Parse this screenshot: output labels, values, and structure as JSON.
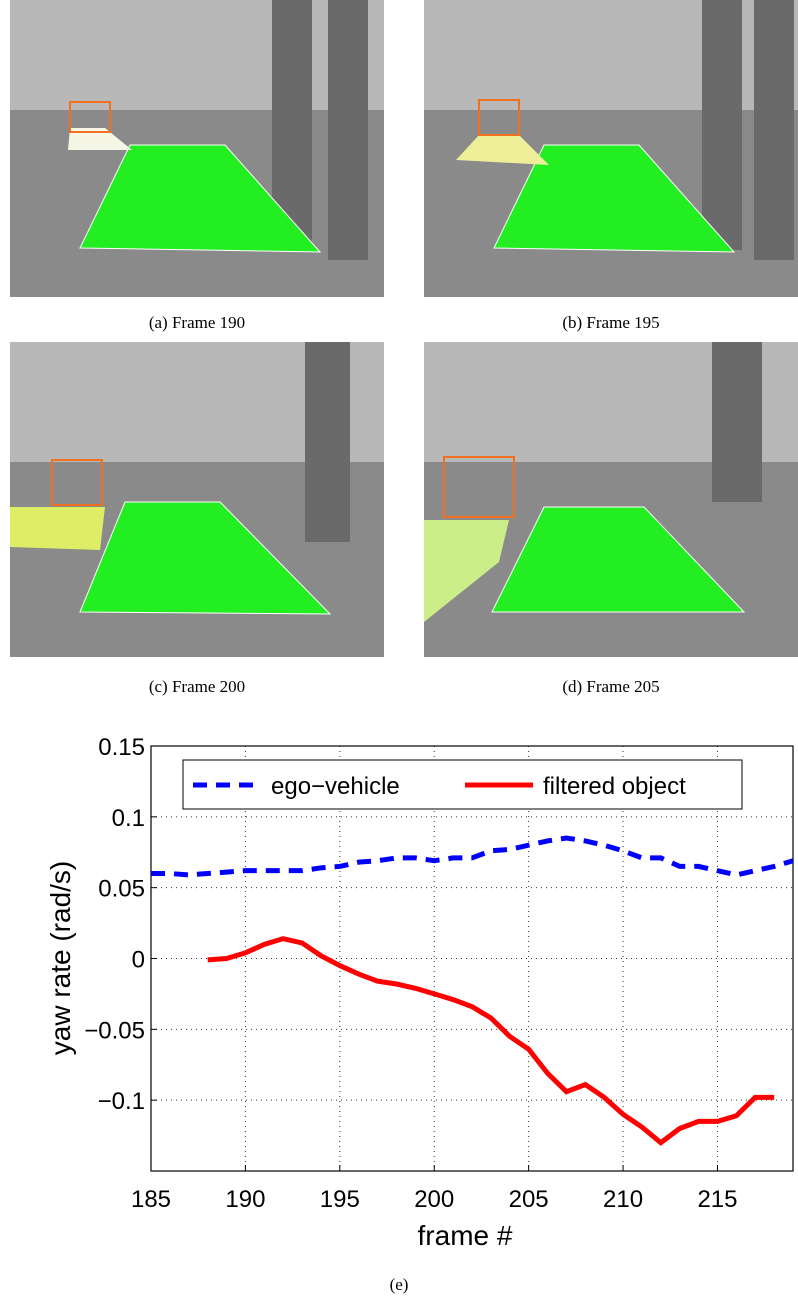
{
  "panels": [
    {
      "caption": "(a)  Frame 190"
    },
    {
      "caption": "(b)  Frame 195"
    },
    {
      "caption": "(c)  Frame 200"
    },
    {
      "caption": "(d)  Frame 205"
    }
  ],
  "chart_data": {
    "type": "line",
    "caption": "(e)",
    "xlabel": "frame #",
    "ylabel": "yaw rate (rad/s)",
    "x": [
      185,
      186,
      187,
      188,
      189,
      190,
      191,
      192,
      193,
      194,
      195,
      196,
      197,
      198,
      199,
      200,
      201,
      202,
      203,
      204,
      205,
      206,
      207,
      208,
      209,
      210,
      211,
      212,
      213,
      214,
      215,
      216,
      217,
      218,
      219
    ],
    "series": [
      {
        "name": "ego−vehicle",
        "color": "#0000ff",
        "dash": true,
        "values": [
          0.06,
          0.06,
          0.059,
          0.06,
          0.061,
          0.062,
          0.062,
          0.062,
          0.062,
          0.064,
          0.065,
          0.068,
          0.069,
          0.071,
          0.071,
          0.069,
          0.071,
          0.071,
          0.076,
          0.077,
          0.08,
          0.083,
          0.085,
          0.083,
          0.08,
          0.076,
          0.071,
          0.071,
          0.065,
          0.065,
          0.062,
          0.059,
          0.062,
          0.065,
          0.069
        ]
      },
      {
        "name": "filtered object",
        "color": "#ff0000",
        "dash": false,
        "values": [
          null,
          null,
          null,
          -0.001,
          0,
          0.004,
          0.01,
          0.014,
          0.011,
          0.002,
          -0.005,
          -0.011,
          -0.016,
          -0.018,
          -0.021,
          -0.025,
          -0.029,
          -0.034,
          -0.042,
          -0.055,
          -0.064,
          -0.081,
          -0.094,
          -0.089,
          -0.098,
          -0.11,
          -0.119,
          -0.13,
          -0.12,
          -0.115,
          -0.115,
          -0.111,
          -0.098,
          -0.098,
          null
        ]
      }
    ],
    "xlim": [
      185,
      219
    ],
    "ylim": [
      -0.15,
      0.15
    ],
    "xticks": [
      185,
      190,
      195,
      200,
      205,
      210,
      215
    ],
    "yticks": [
      {
        "value": -0.1,
        "label": "−0.1"
      },
      {
        "value": -0.05,
        "label": "−0.05"
      },
      0,
      0.05,
      0.1,
      0.15
    ],
    "grid": true,
    "legend": "top"
  }
}
